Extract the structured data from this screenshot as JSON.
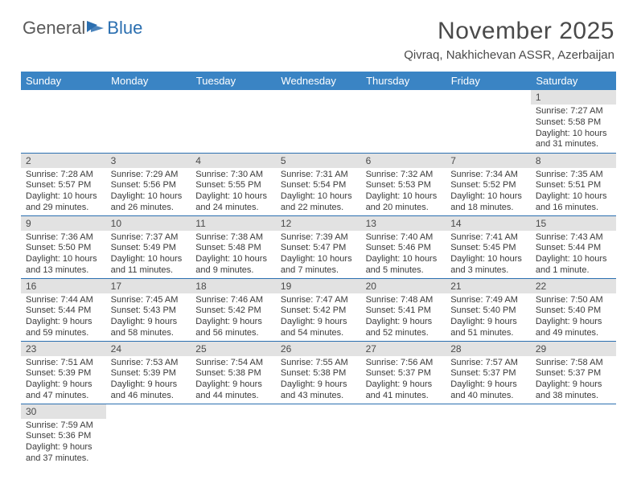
{
  "logo": {
    "text1": "General",
    "text2": "Blue"
  },
  "title": "November 2025",
  "subtitle": "Qivraq, Nakhichevan ASSR, Azerbaijan",
  "colors": {
    "header_bg": "#3a84c4",
    "header_text": "#ffffff",
    "daybar_bg": "#e2e2e2",
    "border": "#2b6fb0",
    "text": "#3a3a3a",
    "title_text": "#4a4a4a",
    "logo_gray": "#5a5a5a",
    "logo_blue": "#2b6fb0",
    "bg": "#ffffff"
  },
  "day_headers": [
    "Sunday",
    "Monday",
    "Tuesday",
    "Wednesday",
    "Thursday",
    "Friday",
    "Saturday"
  ],
  "days": {
    "1": {
      "sunrise": "7:27 AM",
      "sunset": "5:58 PM",
      "daylight": "10 hours and 31 minutes."
    },
    "2": {
      "sunrise": "7:28 AM",
      "sunset": "5:57 PM",
      "daylight": "10 hours and 29 minutes."
    },
    "3": {
      "sunrise": "7:29 AM",
      "sunset": "5:56 PM",
      "daylight": "10 hours and 26 minutes."
    },
    "4": {
      "sunrise": "7:30 AM",
      "sunset": "5:55 PM",
      "daylight": "10 hours and 24 minutes."
    },
    "5": {
      "sunrise": "7:31 AM",
      "sunset": "5:54 PM",
      "daylight": "10 hours and 22 minutes."
    },
    "6": {
      "sunrise": "7:32 AM",
      "sunset": "5:53 PM",
      "daylight": "10 hours and 20 minutes."
    },
    "7": {
      "sunrise": "7:34 AM",
      "sunset": "5:52 PM",
      "daylight": "10 hours and 18 minutes."
    },
    "8": {
      "sunrise": "7:35 AM",
      "sunset": "5:51 PM",
      "daylight": "10 hours and 16 minutes."
    },
    "9": {
      "sunrise": "7:36 AM",
      "sunset": "5:50 PM",
      "daylight": "10 hours and 13 minutes."
    },
    "10": {
      "sunrise": "7:37 AM",
      "sunset": "5:49 PM",
      "daylight": "10 hours and 11 minutes."
    },
    "11": {
      "sunrise": "7:38 AM",
      "sunset": "5:48 PM",
      "daylight": "10 hours and 9 minutes."
    },
    "12": {
      "sunrise": "7:39 AM",
      "sunset": "5:47 PM",
      "daylight": "10 hours and 7 minutes."
    },
    "13": {
      "sunrise": "7:40 AM",
      "sunset": "5:46 PM",
      "daylight": "10 hours and 5 minutes."
    },
    "14": {
      "sunrise": "7:41 AM",
      "sunset": "5:45 PM",
      "daylight": "10 hours and 3 minutes."
    },
    "15": {
      "sunrise": "7:43 AM",
      "sunset": "5:44 PM",
      "daylight": "10 hours and 1 minute."
    },
    "16": {
      "sunrise": "7:44 AM",
      "sunset": "5:44 PM",
      "daylight": "9 hours and 59 minutes."
    },
    "17": {
      "sunrise": "7:45 AM",
      "sunset": "5:43 PM",
      "daylight": "9 hours and 58 minutes."
    },
    "18": {
      "sunrise": "7:46 AM",
      "sunset": "5:42 PM",
      "daylight": "9 hours and 56 minutes."
    },
    "19": {
      "sunrise": "7:47 AM",
      "sunset": "5:42 PM",
      "daylight": "9 hours and 54 minutes."
    },
    "20": {
      "sunrise": "7:48 AM",
      "sunset": "5:41 PM",
      "daylight": "9 hours and 52 minutes."
    },
    "21": {
      "sunrise": "7:49 AM",
      "sunset": "5:40 PM",
      "daylight": "9 hours and 51 minutes."
    },
    "22": {
      "sunrise": "7:50 AM",
      "sunset": "5:40 PM",
      "daylight": "9 hours and 49 minutes."
    },
    "23": {
      "sunrise": "7:51 AM",
      "sunset": "5:39 PM",
      "daylight": "9 hours and 47 minutes."
    },
    "24": {
      "sunrise": "7:53 AM",
      "sunset": "5:39 PM",
      "daylight": "9 hours and 46 minutes."
    },
    "25": {
      "sunrise": "7:54 AM",
      "sunset": "5:38 PM",
      "daylight": "9 hours and 44 minutes."
    },
    "26": {
      "sunrise": "7:55 AM",
      "sunset": "5:38 PM",
      "daylight": "9 hours and 43 minutes."
    },
    "27": {
      "sunrise": "7:56 AM",
      "sunset": "5:37 PM",
      "daylight": "9 hours and 41 minutes."
    },
    "28": {
      "sunrise": "7:57 AM",
      "sunset": "5:37 PM",
      "daylight": "9 hours and 40 minutes."
    },
    "29": {
      "sunrise": "7:58 AM",
      "sunset": "5:37 PM",
      "daylight": "9 hours and 38 minutes."
    },
    "30": {
      "sunrise": "7:59 AM",
      "sunset": "5:36 PM",
      "daylight": "9 hours and 37 minutes."
    }
  },
  "labels": {
    "sunrise": "Sunrise: ",
    "sunset": "Sunset: ",
    "daylight": "Daylight: "
  },
  "grid": [
    [
      null,
      null,
      null,
      null,
      null,
      null,
      "1"
    ],
    [
      "2",
      "3",
      "4",
      "5",
      "6",
      "7",
      "8"
    ],
    [
      "9",
      "10",
      "11",
      "12",
      "13",
      "14",
      "15"
    ],
    [
      "16",
      "17",
      "18",
      "19",
      "20",
      "21",
      "22"
    ],
    [
      "23",
      "24",
      "25",
      "26",
      "27",
      "28",
      "29"
    ],
    [
      "30",
      null,
      null,
      null,
      null,
      null,
      null
    ]
  ]
}
